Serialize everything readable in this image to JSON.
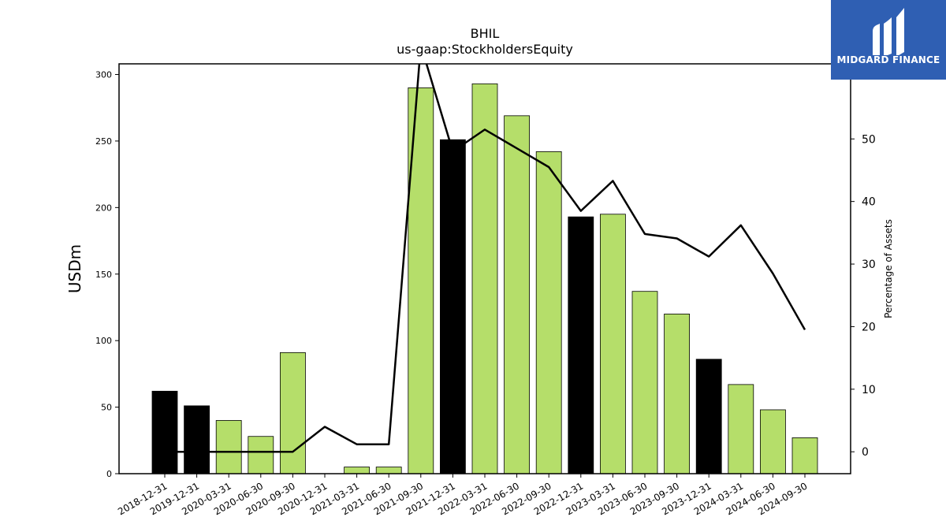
{
  "chart_data": {
    "type": "bar",
    "title": "BHIL",
    "subtitle": "us-gaap:StockholdersEquity",
    "ylabel": "USDm",
    "y2label": "Percentage of Assets",
    "ylim": [
      0,
      308
    ],
    "y2lim": [
      -3.5,
      62
    ],
    "yticks": [
      0,
      50,
      100,
      150,
      200,
      250,
      300
    ],
    "y2ticks": [
      0,
      10,
      20,
      30,
      40,
      50
    ],
    "categories": [
      "2018-12-31",
      "2019-12-31",
      "2020-03-31",
      "2020-06-30",
      "2020-09-30",
      "2020-12-31",
      "2021-03-31",
      "2021-06-30",
      "2021-09-30",
      "2021-12-31",
      "2022-03-31",
      "2022-06-30",
      "2022-09-30",
      "2022-12-31",
      "2023-03-31",
      "2023-06-30",
      "2023-09-30",
      "2023-12-31",
      "2024-03-31",
      "2024-06-30",
      "2024-09-30"
    ],
    "values": [
      62,
      51,
      40,
      28,
      91,
      0,
      5,
      5,
      290,
      251,
      293,
      269,
      242,
      193,
      195,
      137,
      120,
      86,
      67,
      48,
      27
    ],
    "annual": [
      true,
      true,
      false,
      false,
      false,
      true,
      false,
      false,
      false,
      true,
      false,
      false,
      false,
      true,
      false,
      false,
      false,
      true,
      false,
      false,
      false
    ],
    "line_values": [
      0,
      0,
      0,
      0,
      0,
      4,
      1.2,
      1.2,
      65,
      48,
      51.5,
      48.5,
      45.5,
      38.5,
      43.3,
      34.8,
      34.1,
      31.2,
      36.2,
      28.5,
      19.5
    ],
    "colors": {
      "annual_bar": "#000000",
      "quarter_bar": "#b5de6a",
      "line": "#000000"
    }
  },
  "logo": {
    "text": "MIDGARD FINANCE",
    "bg": "#2f5fb3"
  }
}
